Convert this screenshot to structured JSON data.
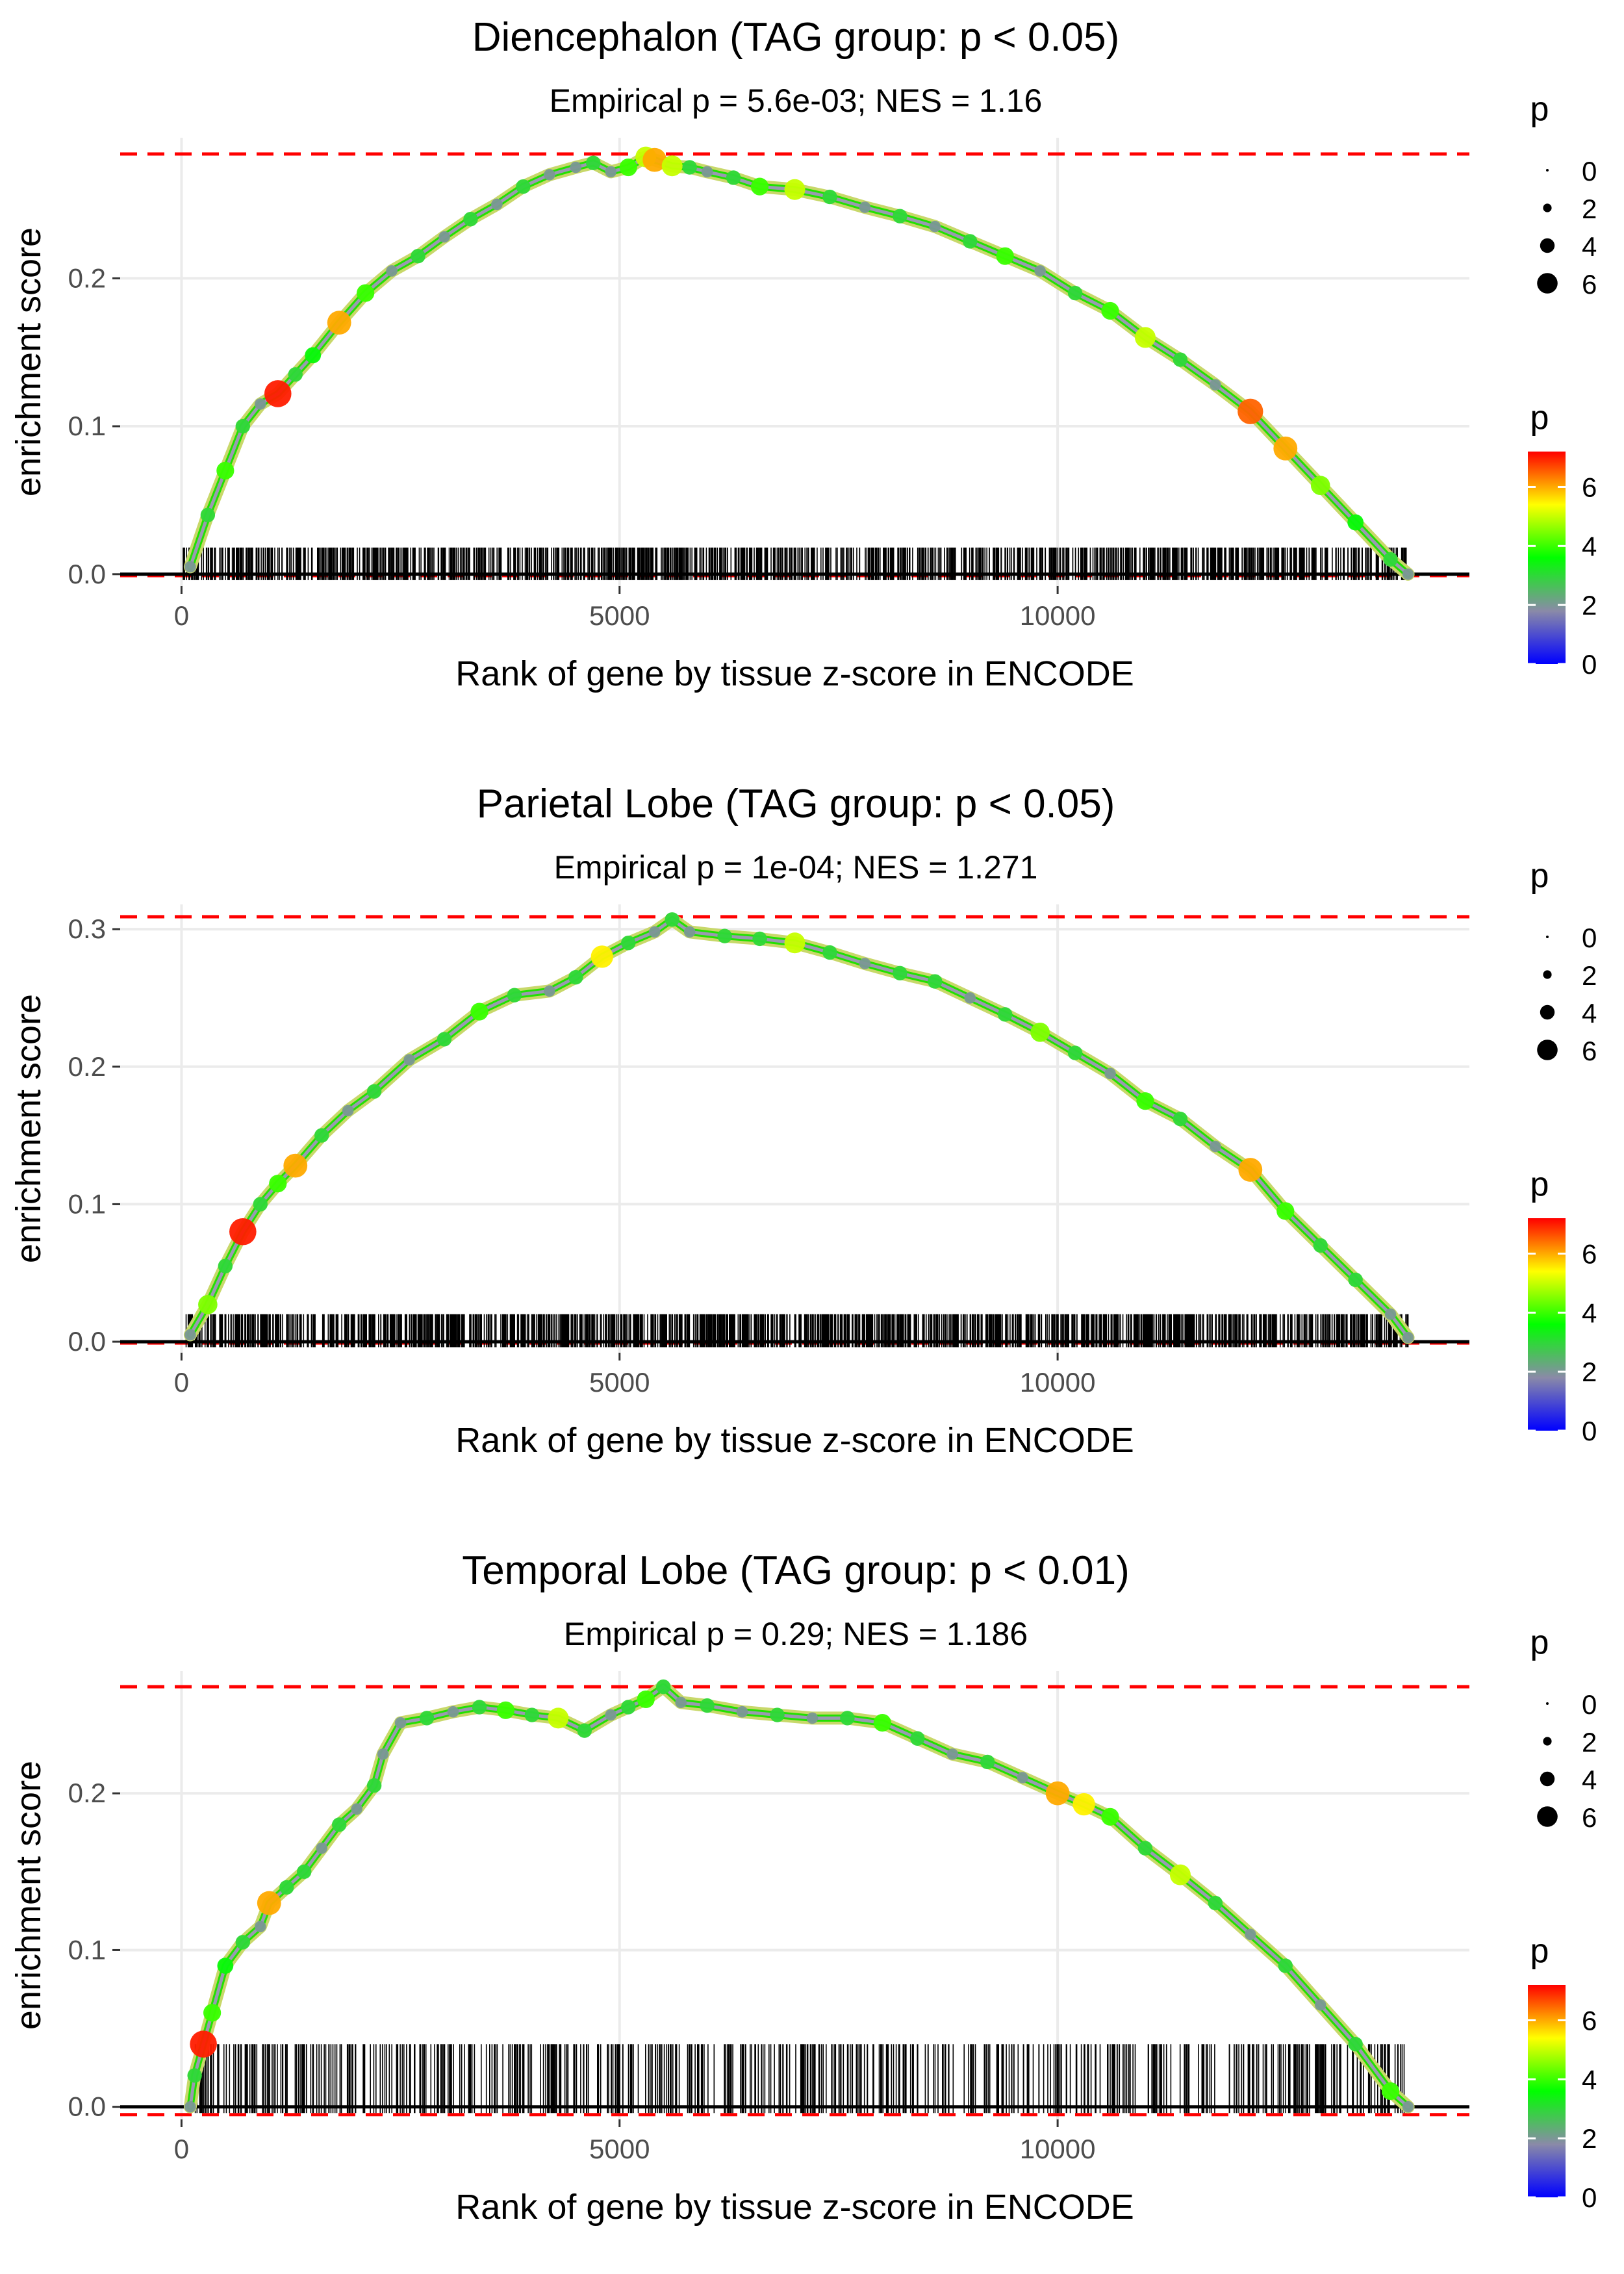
{
  "figure": {
    "panel_count": 3
  },
  "chart_data": [
    {
      "type": "line",
      "title": "Diencephalon (TAG group: p < 0.05)",
      "subtitle": "Empirical p = 5.6e-03; NES = 1.16",
      "xlabel": "Rank of gene by tissue z-score in ENCODE",
      "ylabel": "enrichment score",
      "xlim": [
        -700,
        14700
      ],
      "ylim": [
        -0.008,
        0.295
      ],
      "xticks": [
        0,
        5000,
        10000
      ],
      "xtick_labels": [
        "0",
        "5000",
        "10000"
      ],
      "yticks": [
        0.0,
        0.1,
        0.2
      ],
      "ytick_labels": [
        "0.0",
        "0.1",
        "0.2"
      ],
      "max_es": 0.284,
      "min_es": -0.001,
      "series": [
        {
          "name": "running enrichment score",
          "x": [
            100,
            300,
            500,
            700,
            900,
            1100,
            1300,
            1500,
            1800,
            2100,
            2400,
            2700,
            3000,
            3300,
            3600,
            3900,
            4200,
            4500,
            4700,
            4900,
            5100,
            5300,
            5400,
            5600,
            5800,
            6000,
            6300,
            6600,
            7000,
            7400,
            7800,
            8200,
            8600,
            9000,
            9400,
            9800,
            10200,
            10600,
            11000,
            11400,
            11800,
            12200,
            12600,
            13000,
            13400,
            13800,
            14000
          ],
          "y": [
            0.005,
            0.04,
            0.07,
            0.1,
            0.115,
            0.122,
            0.135,
            0.148,
            0.17,
            0.19,
            0.205,
            0.215,
            0.228,
            0.24,
            0.25,
            0.262,
            0.27,
            0.275,
            0.278,
            0.272,
            0.275,
            0.282,
            0.28,
            0.276,
            0.275,
            0.272,
            0.268,
            0.262,
            0.26,
            0.255,
            0.248,
            0.242,
            0.235,
            0.225,
            0.215,
            0.205,
            0.19,
            0.178,
            0.16,
            0.145,
            0.128,
            0.11,
            0.085,
            0.06,
            0.035,
            0.01,
            0.0
          ],
          "p": [
            2.0,
            3.0,
            4.0,
            3.0,
            2.0,
            7.0,
            3.0,
            3.5,
            6.0,
            4.0,
            2.0,
            3.0,
            2.0,
            3.0,
            2.0,
            3.0,
            2.0,
            2.0,
            3.0,
            2.0,
            4.0,
            5.0,
            6.0,
            5.0,
            3.0,
            2.0,
            3.0,
            4.0,
            5.0,
            3.0,
            2.0,
            3.0,
            2.0,
            3.0,
            4.0,
            2.0,
            3.0,
            4.0,
            5.0,
            3.0,
            2.0,
            6.5,
            6.0,
            4.5,
            3.5,
            3.0,
            2.0
          ]
        }
      ],
      "gene_ticks": {
        "rank_min": 0,
        "rank_max": 14000,
        "height_es": 0.018,
        "count": 1200
      }
    },
    {
      "type": "line",
      "title": "Parietal Lobe (TAG group: p < 0.05)",
      "subtitle": "Empirical p = 1e-04; NES = 1.271",
      "xlabel": "Rank of gene by tissue z-score in ENCODE",
      "ylabel": "enrichment score",
      "xlim": [
        -700,
        14700
      ],
      "ylim": [
        -0.008,
        0.318
      ],
      "xticks": [
        0,
        5000,
        10000
      ],
      "xtick_labels": [
        "0",
        "5000",
        "10000"
      ],
      "yticks": [
        0.0,
        0.1,
        0.2,
        0.3
      ],
      "ytick_labels": [
        "0.0",
        "0.1",
        "0.2",
        "0.3"
      ],
      "max_es": 0.309,
      "min_es": -0.001,
      "series": [
        {
          "name": "running enrichment score",
          "x": [
            100,
            300,
            500,
            700,
            900,
            1100,
            1300,
            1600,
            1900,
            2200,
            2600,
            3000,
            3400,
            3800,
            4200,
            4500,
            4800,
            5100,
            5400,
            5600,
            5800,
            6200,
            6600,
            7000,
            7400,
            7800,
            8200,
            8600,
            9000,
            9400,
            9800,
            10200,
            10600,
            11000,
            11400,
            11800,
            12200,
            12600,
            13000,
            13400,
            13800,
            14000
          ],
          "y": [
            0.005,
            0.027,
            0.055,
            0.08,
            0.1,
            0.115,
            0.128,
            0.15,
            0.168,
            0.182,
            0.205,
            0.22,
            0.24,
            0.252,
            0.255,
            0.265,
            0.28,
            0.29,
            0.298,
            0.307,
            0.298,
            0.295,
            0.293,
            0.29,
            0.283,
            0.275,
            0.268,
            0.262,
            0.25,
            0.238,
            0.225,
            0.21,
            0.195,
            0.175,
            0.162,
            0.142,
            0.125,
            0.095,
            0.07,
            0.045,
            0.02,
            0.003
          ],
          "p": [
            2.0,
            4.5,
            3.0,
            7.0,
            3.0,
            4.0,
            6.0,
            3.0,
            2.0,
            3.0,
            2.0,
            3.0,
            4.0,
            3.0,
            2.0,
            3.0,
            5.5,
            3.0,
            2.0,
            3.0,
            2.0,
            3.0,
            3.0,
            5.0,
            3.0,
            2.0,
            3.0,
            3.0,
            2.0,
            3.0,
            4.5,
            3.0,
            2.0,
            4.0,
            3.0,
            2.0,
            6.0,
            4.0,
            3.0,
            3.0,
            2.0,
            2.0
          ]
        }
      ],
      "gene_ticks": {
        "rank_min": 50,
        "rank_max": 14000,
        "height_es": 0.02,
        "count": 1400
      }
    },
    {
      "type": "line",
      "title": "Temporal Lobe (TAG group: p < 0.01)",
      "subtitle": "Empirical p = 0.29; NES = 1.186",
      "xlabel": "Rank of gene by tissue z-score in ENCODE",
      "ylabel": "enrichment score",
      "xlim": [
        -700,
        14700
      ],
      "ylim": [
        -0.008,
        0.278
      ],
      "xticks": [
        0,
        5000,
        10000
      ],
      "xtick_labels": [
        "0",
        "5000",
        "10000"
      ],
      "yticks": [
        0.0,
        0.1,
        0.2
      ],
      "ytick_labels": [
        "0.0",
        "0.1",
        "0.2"
      ],
      "max_es": 0.268,
      "min_es": -0.005,
      "series": [
        {
          "name": "running enrichment score",
          "x": [
            100,
            150,
            250,
            350,
            500,
            700,
            900,
            1000,
            1200,
            1400,
            1600,
            1800,
            2000,
            2200,
            2300,
            2500,
            2800,
            3100,
            3400,
            3700,
            4000,
            4300,
            4600,
            4900,
            5100,
            5300,
            5500,
            5700,
            6000,
            6400,
            6800,
            7200,
            7600,
            8000,
            8400,
            8800,
            9200,
            9600,
            10000,
            10300,
            10600,
            11000,
            11400,
            11800,
            12200,
            12600,
            13000,
            13400,
            13800,
            14000
          ],
          "y": [
            0.0,
            0.02,
            0.04,
            0.06,
            0.09,
            0.105,
            0.115,
            0.13,
            0.14,
            0.15,
            0.165,
            0.18,
            0.19,
            0.205,
            0.225,
            0.245,
            0.248,
            0.252,
            0.255,
            0.253,
            0.25,
            0.248,
            0.24,
            0.25,
            0.255,
            0.26,
            0.268,
            0.258,
            0.256,
            0.252,
            0.25,
            0.248,
            0.248,
            0.245,
            0.235,
            0.225,
            0.22,
            0.21,
            0.2,
            0.193,
            0.185,
            0.165,
            0.148,
            0.13,
            0.11,
            0.09,
            0.065,
            0.04,
            0.01,
            0.0
          ],
          "p": [
            2.0,
            3.0,
            7.0,
            4.0,
            3.5,
            3.0,
            2.0,
            6.0,
            3.0,
            3.0,
            2.0,
            3.0,
            2.0,
            3.0,
            2.0,
            2.0,
            3.0,
            2.0,
            3.0,
            4.0,
            3.0,
            5.0,
            3.0,
            2.0,
            3.0,
            4.0,
            3.0,
            2.0,
            3.0,
            2.0,
            3.0,
            2.0,
            3.0,
            4.0,
            3.0,
            2.0,
            3.0,
            2.0,
            6.0,
            5.5,
            4.0,
            3.0,
            5.0,
            3.0,
            2.0,
            3.0,
            2.0,
            3.0,
            4.0,
            2.0
          ]
        }
      ],
      "gene_ticks": {
        "rank_min": 100,
        "rank_max": 14000,
        "height_es": 0.04,
        "count": 650
      }
    }
  ],
  "legends": {
    "size": {
      "title": "p",
      "items": [
        "0",
        "2",
        "4",
        "6"
      ]
    },
    "color": {
      "title": "p",
      "labels": [
        "0",
        "2",
        "4",
        "6"
      ],
      "min": 0,
      "max": 7.2,
      "stops": [
        "#0000ff",
        "#8a8aa8",
        "#00ff00",
        "#ffff00",
        "#ff0000"
      ]
    }
  },
  "colors": {
    "ref_line": "#ff0000",
    "zero_line": "#000000",
    "grid": "#ebebeb",
    "text": "#000000",
    "tick_text": "#4d4d4d",
    "gene_tick": "#000000"
  }
}
